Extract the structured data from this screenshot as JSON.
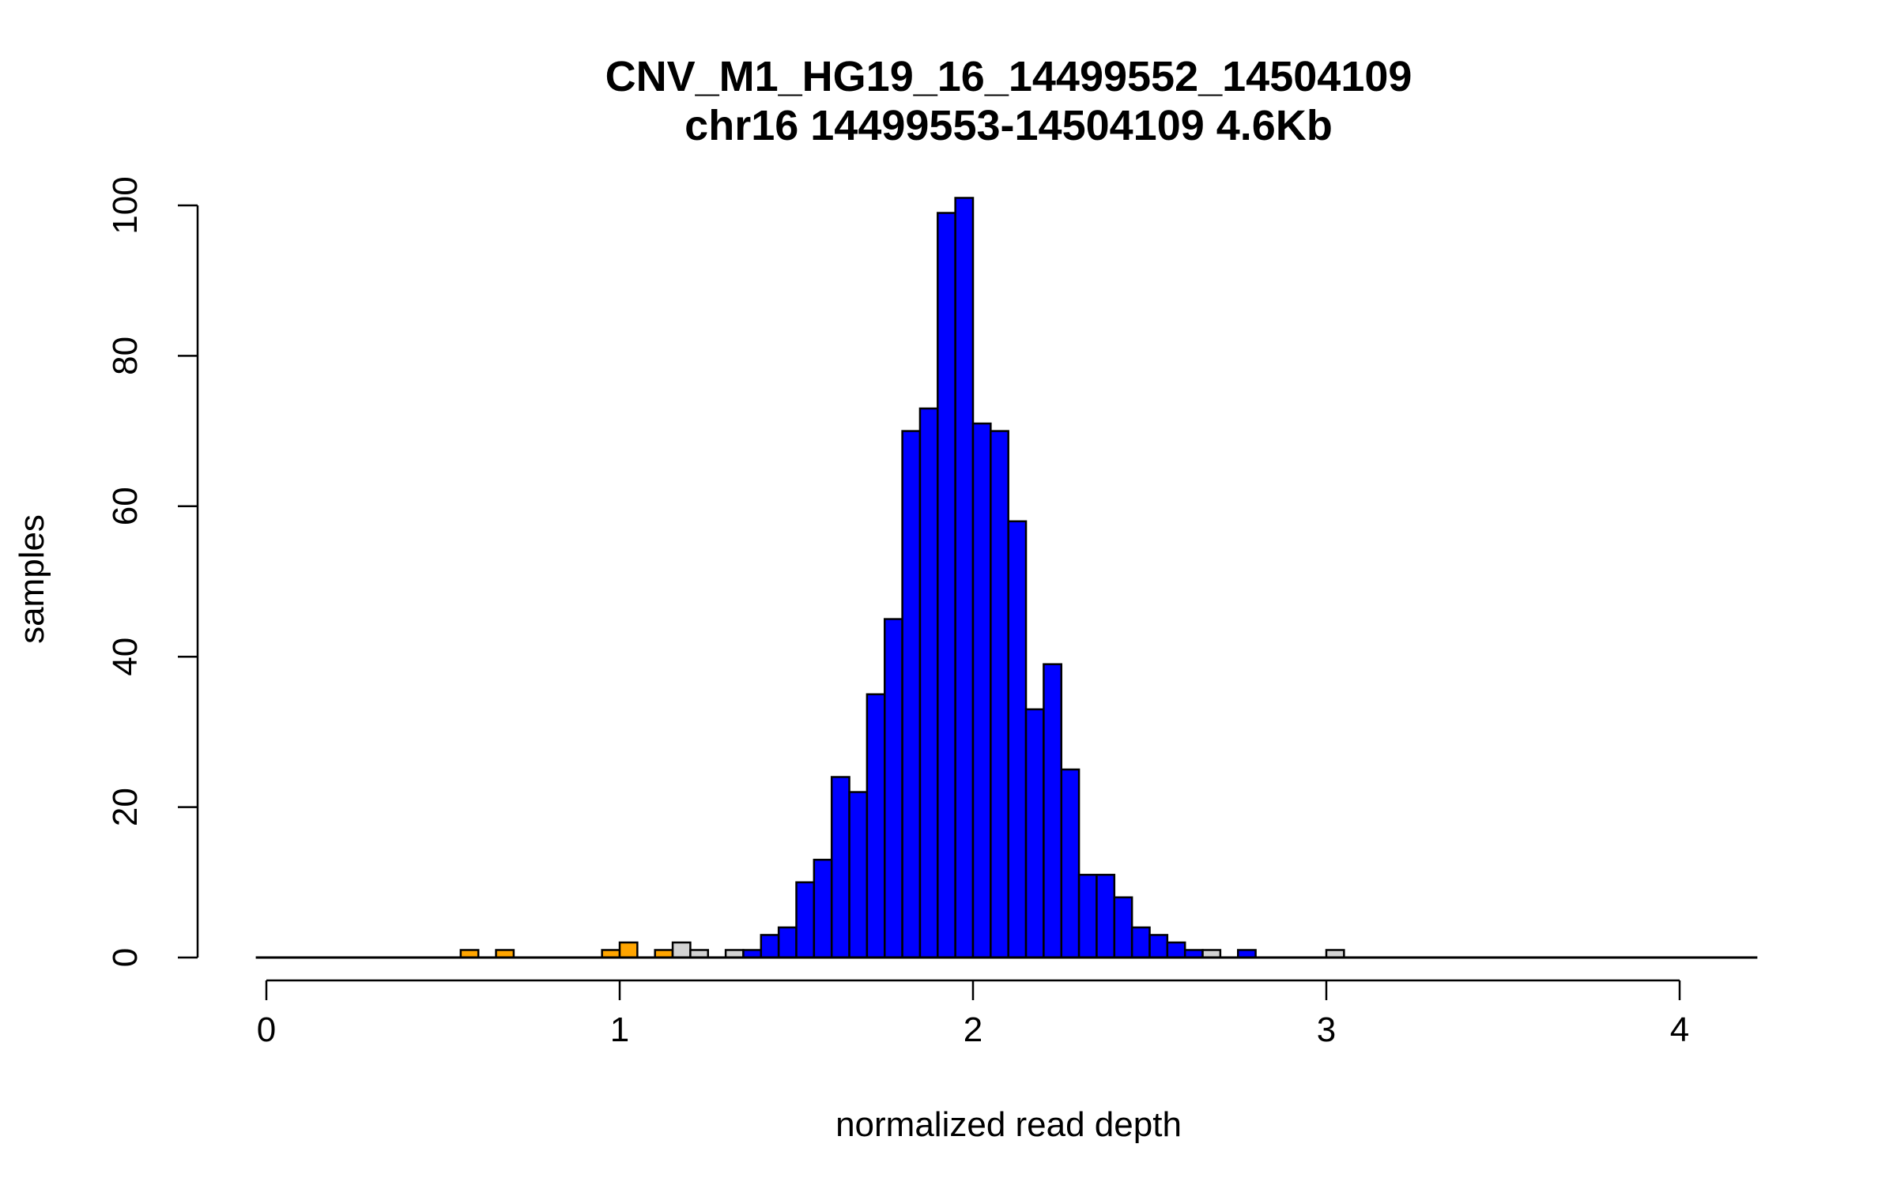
{
  "chart_data": {
    "type": "bar",
    "title": "CNV_M1_HG19_16_14499552_14504109",
    "subtitle": "chr16 14499553-14504109 4.6Kb",
    "xlabel": "normalized read depth",
    "ylabel": "samples",
    "xlim": [
      -0.03,
      4.22
    ],
    "ylim": [
      0,
      100
    ],
    "bin_width": 0.05,
    "x_ticks": [
      0,
      1,
      2,
      3,
      4
    ],
    "y_ticks": [
      0,
      20,
      40,
      60,
      80,
      100
    ],
    "x_tick_labels": [
      "0",
      "1",
      "2",
      "3",
      "4"
    ],
    "y_tick_labels": [
      "0",
      "20",
      "40",
      "60",
      "80",
      "100"
    ],
    "baseline": [
      -0.03,
      4.22
    ],
    "colors": {
      "orange": "#FFA500",
      "grey": "#D3D3D3",
      "blue": "#0000FF",
      "outline": "#000000"
    },
    "bars": [
      {
        "x0": 0.55,
        "count": 1,
        "color": "orange"
      },
      {
        "x0": 0.65,
        "count": 1,
        "color": "orange"
      },
      {
        "x0": 0.95,
        "count": 1,
        "color": "orange"
      },
      {
        "x0": 1.0,
        "count": 2,
        "color": "orange"
      },
      {
        "x0": 1.1,
        "count": 1,
        "color": "orange"
      },
      {
        "x0": 1.15,
        "count": 1,
        "color": "orange"
      },
      {
        "x0": 1.15,
        "count": 2,
        "color": "grey"
      },
      {
        "x0": 1.2,
        "count": 1,
        "color": "grey"
      },
      {
        "x0": 1.3,
        "count": 1,
        "color": "grey"
      },
      {
        "x0": 1.35,
        "count": 1,
        "color": "blue"
      },
      {
        "x0": 1.4,
        "count": 3,
        "color": "blue"
      },
      {
        "x0": 1.45,
        "count": 4,
        "color": "blue"
      },
      {
        "x0": 1.5,
        "count": 10,
        "color": "blue"
      },
      {
        "x0": 1.55,
        "count": 13,
        "color": "blue"
      },
      {
        "x0": 1.6,
        "count": 24,
        "color": "blue"
      },
      {
        "x0": 1.65,
        "count": 22,
        "color": "blue"
      },
      {
        "x0": 1.7,
        "count": 35,
        "color": "blue"
      },
      {
        "x0": 1.75,
        "count": 45,
        "color": "blue"
      },
      {
        "x0": 1.8,
        "count": 70,
        "color": "blue"
      },
      {
        "x0": 1.85,
        "count": 73,
        "color": "blue"
      },
      {
        "x0": 1.9,
        "count": 99,
        "color": "blue"
      },
      {
        "x0": 1.95,
        "count": 101,
        "color": "blue"
      },
      {
        "x0": 2.0,
        "count": 71,
        "color": "blue"
      },
      {
        "x0": 2.05,
        "count": 70,
        "color": "blue"
      },
      {
        "x0": 2.1,
        "count": 58,
        "color": "blue"
      },
      {
        "x0": 2.15,
        "count": 33,
        "color": "blue"
      },
      {
        "x0": 2.2,
        "count": 39,
        "color": "blue"
      },
      {
        "x0": 2.25,
        "count": 25,
        "color": "blue"
      },
      {
        "x0": 2.3,
        "count": 11,
        "color": "blue"
      },
      {
        "x0": 2.35,
        "count": 11,
        "color": "blue"
      },
      {
        "x0": 2.4,
        "count": 8,
        "color": "blue"
      },
      {
        "x0": 2.45,
        "count": 4,
        "color": "blue"
      },
      {
        "x0": 2.5,
        "count": 3,
        "color": "blue"
      },
      {
        "x0": 2.55,
        "count": 2,
        "color": "blue"
      },
      {
        "x0": 2.6,
        "count": 1,
        "color": "blue"
      },
      {
        "x0": 2.65,
        "count": 1,
        "color": "grey"
      },
      {
        "x0": 2.75,
        "count": 1,
        "color": "blue"
      },
      {
        "x0": 3.0,
        "count": 1,
        "color": "grey"
      }
    ]
  }
}
